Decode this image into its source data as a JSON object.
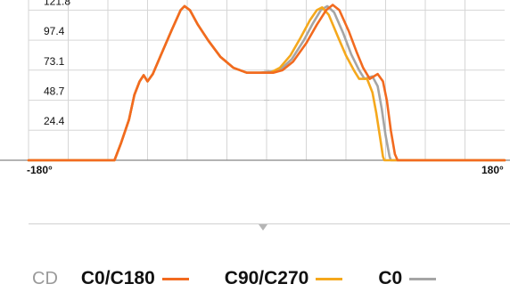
{
  "legend": {
    "unit_label": "CD",
    "items": [
      {
        "name": "C0/C180",
        "color": "#f26a1f"
      },
      {
        "name": "C90/C270",
        "color": "#f5a81c"
      },
      {
        "name": "C0",
        "color": "#a5a5a5"
      }
    ]
  },
  "colors": {
    "grid": "#d6d6d6",
    "axis": "#888888",
    "background": "#ffffff"
  },
  "chart_data": {
    "type": "line",
    "x_range": [
      -180,
      180
    ],
    "y_range": [
      0,
      130
    ],
    "x_tick_labels": [
      {
        "value": -180,
        "label": "-180°"
      },
      {
        "value": 180,
        "label": "180°"
      }
    ],
    "y_ticks": [
      24.4,
      48.7,
      73.1,
      97.4,
      121.8
    ],
    "grid": true,
    "series": [
      {
        "name": "C0/C180",
        "color": "#f26a1f",
        "points": [
          [
            -180,
            0
          ],
          [
            -115,
            0
          ],
          [
            -110,
            14
          ],
          [
            -104,
            33
          ],
          [
            -100,
            53
          ],
          [
            -96,
            64
          ],
          [
            -93,
            69
          ],
          [
            -90,
            64
          ],
          [
            -86,
            70
          ],
          [
            -80,
            85
          ],
          [
            -72,
            105
          ],
          [
            -65,
            121.8
          ],
          [
            -62,
            125
          ],
          [
            -58,
            121.8
          ],
          [
            -52,
            110
          ],
          [
            -44,
            97
          ],
          [
            -35,
            84
          ],
          [
            -25,
            75
          ],
          [
            -15,
            71
          ],
          [
            -5,
            71
          ],
          [
            5,
            71
          ],
          [
            12,
            73
          ],
          [
            20,
            80
          ],
          [
            30,
            95
          ],
          [
            38,
            110
          ],
          [
            45,
            121.8
          ],
          [
            50,
            126
          ],
          [
            55,
            121.8
          ],
          [
            62,
            105
          ],
          [
            68,
            88
          ],
          [
            73,
            75
          ],
          [
            78,
            66
          ],
          [
            84,
            70
          ],
          [
            88,
            64
          ],
          [
            91,
            48
          ],
          [
            94,
            24
          ],
          [
            97,
            5
          ],
          [
            99,
            0
          ],
          [
            180,
            0
          ]
        ]
      },
      {
        "name": "C90/C270",
        "color": "#f5a81c",
        "points": [
          [
            -180,
            0
          ],
          [
            -115,
            0
          ],
          [
            -110,
            14
          ],
          [
            -104,
            33
          ],
          [
            -100,
            53
          ],
          [
            -96,
            64
          ],
          [
            -93,
            69
          ],
          [
            -90,
            64
          ],
          [
            -86,
            70
          ],
          [
            -80,
            85
          ],
          [
            -72,
            105
          ],
          [
            -65,
            121.8
          ],
          [
            -62,
            125
          ],
          [
            -58,
            121.8
          ],
          [
            -52,
            110
          ],
          [
            -44,
            97
          ],
          [
            -35,
            84
          ],
          [
            -25,
            75
          ],
          [
            -15,
            71
          ],
          [
            -5,
            71
          ],
          [
            3,
            71
          ],
          [
            10,
            75
          ],
          [
            18,
            85
          ],
          [
            26,
            100
          ],
          [
            33,
            114
          ],
          [
            38,
            121.8
          ],
          [
            42,
            124
          ],
          [
            47,
            118
          ],
          [
            54,
            100
          ],
          [
            60,
            85
          ],
          [
            66,
            73
          ],
          [
            70,
            66
          ],
          [
            76,
            66
          ],
          [
            80,
            55
          ],
          [
            83,
            38
          ],
          [
            86,
            17
          ],
          [
            88,
            3
          ],
          [
            89,
            0
          ],
          [
            180,
            0
          ]
        ]
      },
      {
        "name": "C0",
        "color": "#a5a5a5",
        "points": [
          [
            -180,
            0
          ],
          [
            -115,
            0
          ],
          [
            -110,
            14
          ],
          [
            -104,
            33
          ],
          [
            -100,
            53
          ],
          [
            -96,
            64
          ],
          [
            -93,
            69
          ],
          [
            -90,
            64
          ],
          [
            -86,
            70
          ],
          [
            -80,
            85
          ],
          [
            -72,
            105
          ],
          [
            -65,
            121.8
          ],
          [
            -62,
            125
          ],
          [
            -58,
            121.8
          ],
          [
            -52,
            110
          ],
          [
            -44,
            97
          ],
          [
            -35,
            84
          ],
          [
            -25,
            75
          ],
          [
            -15,
            71
          ],
          [
            -5,
            71
          ],
          [
            4,
            72
          ],
          [
            11,
            74
          ],
          [
            19,
            82
          ],
          [
            28,
            97
          ],
          [
            35,
            111
          ],
          [
            41,
            121.8
          ],
          [
            46,
            125
          ],
          [
            51,
            120
          ],
          [
            58,
            103
          ],
          [
            64,
            86
          ],
          [
            70,
            73
          ],
          [
            74,
            66
          ],
          [
            80,
            68
          ],
          [
            84,
            60
          ],
          [
            87,
            42
          ],
          [
            90,
            20
          ],
          [
            93,
            3
          ],
          [
            94,
            0
          ],
          [
            180,
            0
          ]
        ]
      }
    ]
  }
}
